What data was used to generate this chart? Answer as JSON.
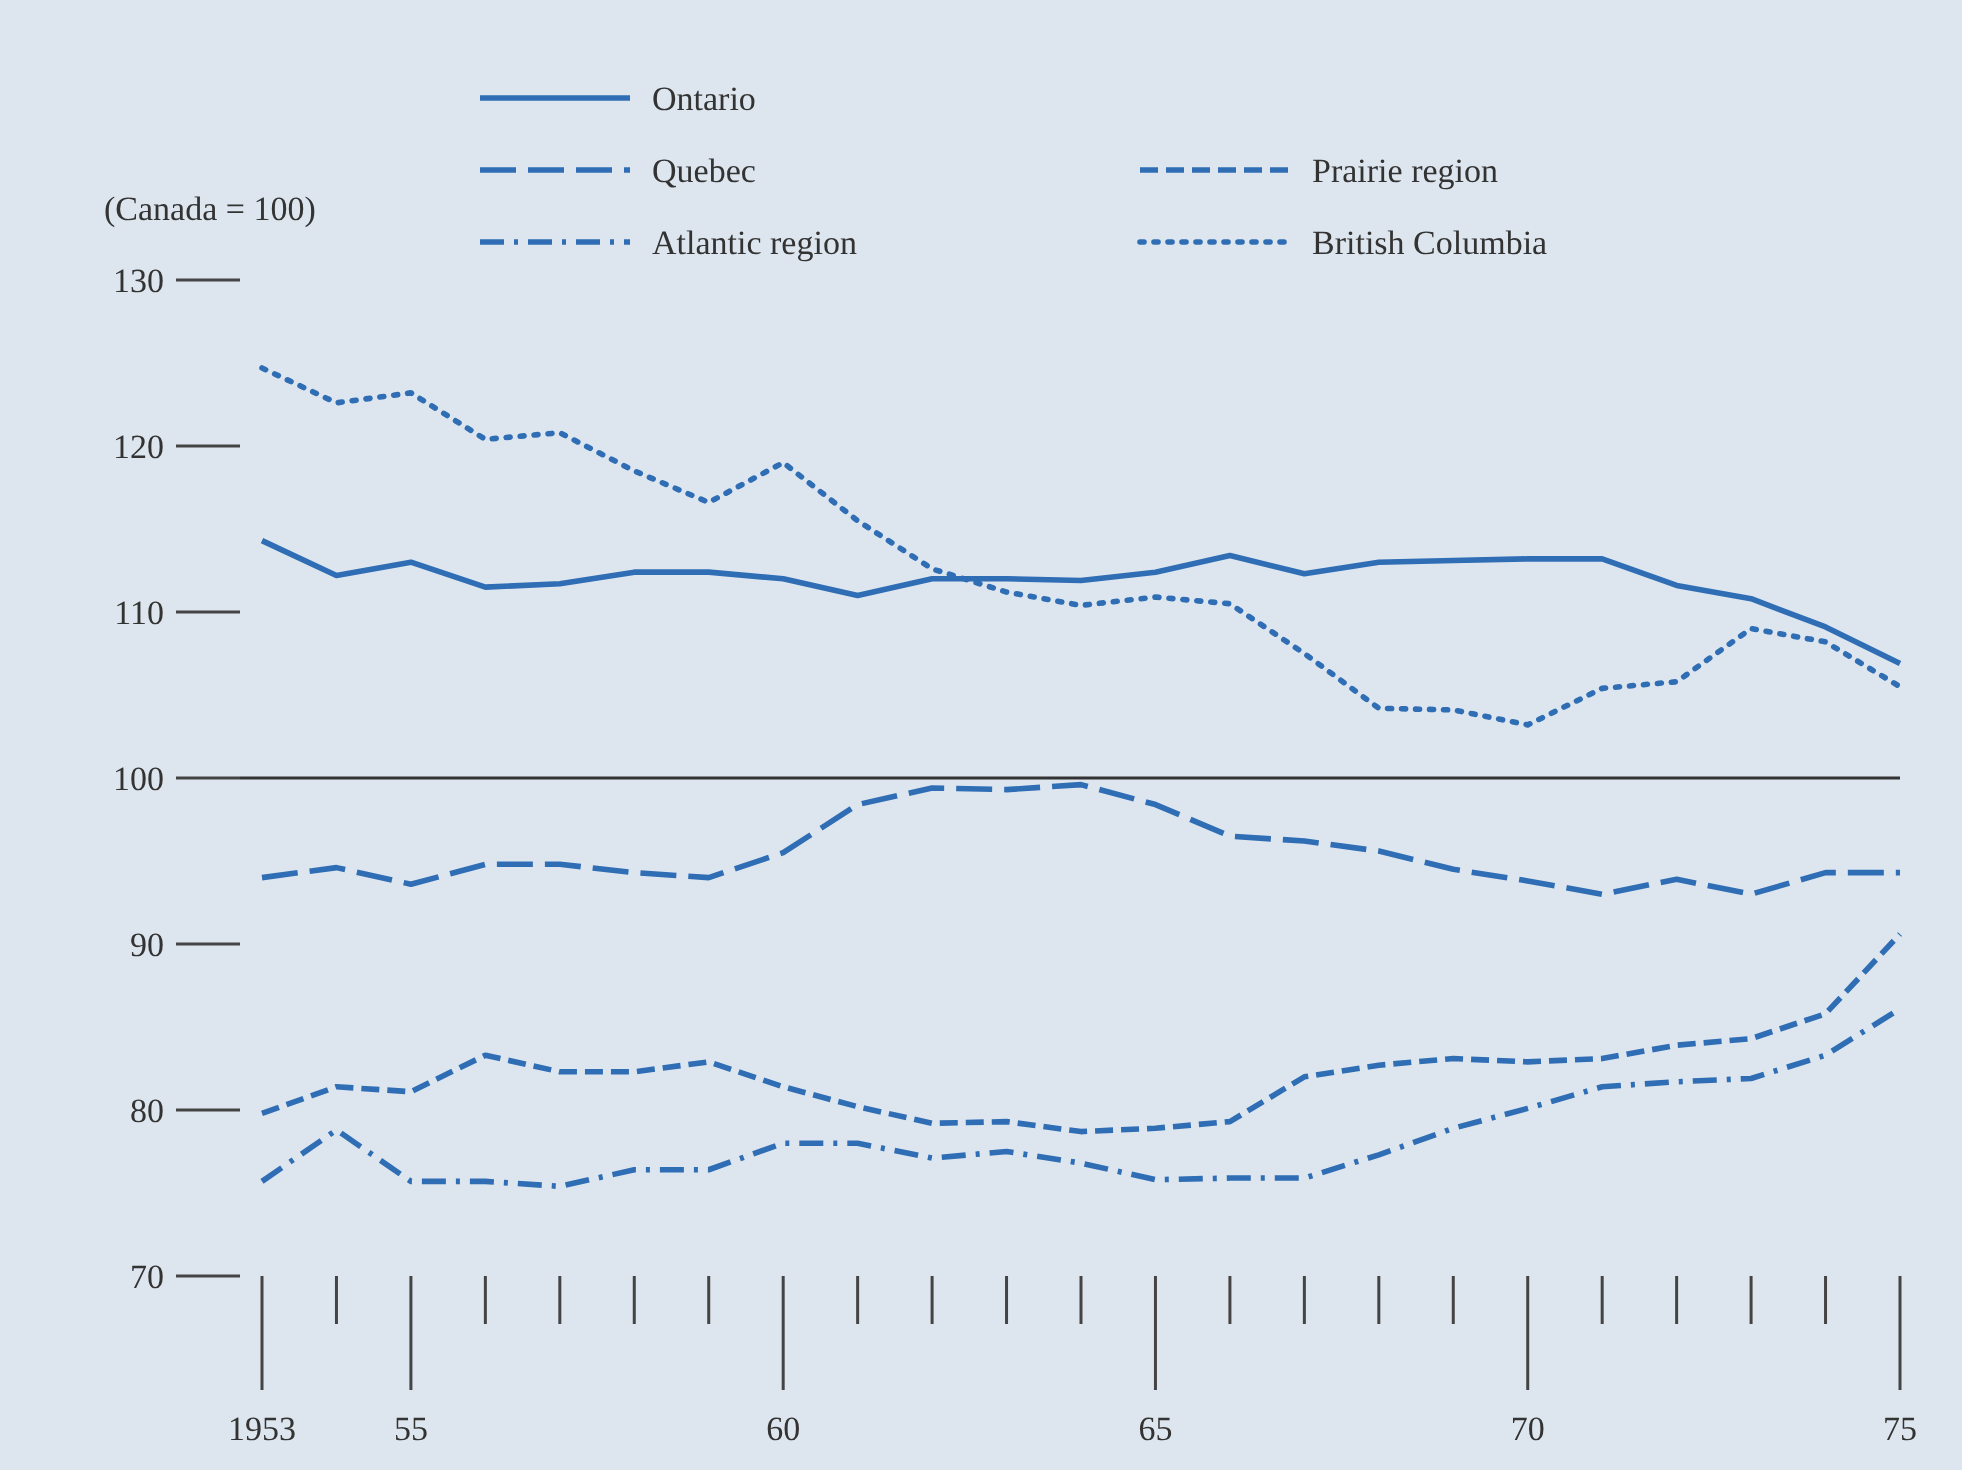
{
  "chart_data": {
    "type": "line",
    "ylabel": "(Canada = 100)",
    "x": [
      1953,
      1954,
      1955,
      1956,
      1957,
      1958,
      1959,
      1960,
      1961,
      1962,
      1963,
      1964,
      1965,
      1966,
      1967,
      1968,
      1969,
      1970,
      1971,
      1972,
      1973,
      1974,
      1975
    ],
    "xlim": [
      1953,
      1975
    ],
    "xticks": [
      {
        "value": 1953,
        "label": "1953"
      },
      {
        "value": 1955,
        "label": "55"
      },
      {
        "value": 1960,
        "label": "60"
      },
      {
        "value": 1965,
        "label": "65"
      },
      {
        "value": 1970,
        "label": "70"
      },
      {
        "value": 1975,
        "label": "75"
      }
    ],
    "ylim": [
      70,
      130
    ],
    "yticks": [
      70,
      80,
      90,
      100,
      110,
      120,
      130
    ],
    "legend": "top",
    "grid": false,
    "ref_lines": [
      {
        "axis": "y",
        "value": 100,
        "color": "#333333",
        "line_style": "solid"
      }
    ],
    "series": [
      {
        "name": "Ontario",
        "color": "#2f6db5",
        "line_style": "solid",
        "values": [
          114.3,
          112.2,
          113,
          111.5,
          111.7,
          112.4,
          112.4,
          112,
          111,
          112,
          112,
          111.9,
          112.4,
          113.4,
          112.3,
          113,
          113.1,
          113.2,
          113.2,
          111.6,
          110.8,
          109.1,
          106.9
        ]
      },
      {
        "name": "Quebec",
        "color": "#2f6db5",
        "line_style": "longdash",
        "values": [
          94,
          94.6,
          93.6,
          94.8,
          94.8,
          94.3,
          94,
          95.5,
          98.4,
          99.4,
          99.3,
          99.6,
          98.4,
          96.5,
          96.2,
          95.6,
          94.5,
          93.8,
          93,
          93.9,
          93,
          94.3,
          94.3
        ]
      },
      {
        "name": "Atlantic region",
        "color": "#2f6db5",
        "line_style": "dashdot",
        "values": [
          75.7,
          78.8,
          75.7,
          75.7,
          75.4,
          76.4,
          76.4,
          78,
          78,
          77.1,
          77.5,
          76.8,
          75.8,
          75.9,
          75.9,
          77.3,
          78.9,
          80.1,
          81.4,
          81.7,
          81.9,
          83.3,
          86.1
        ]
      },
      {
        "name": "Prairie region",
        "color": "#2f6db5",
        "line_style": "dashed",
        "values": [
          79.8,
          81.4,
          81.1,
          83.3,
          82.3,
          82.3,
          82.9,
          81.4,
          80.2,
          79.2,
          79.3,
          78.7,
          78.9,
          79.3,
          82,
          82.7,
          83.1,
          82.9,
          83.1,
          83.9,
          84.3,
          85.8,
          90.6
        ]
      },
      {
        "name": "British Columbia",
        "color": "#2f6db5",
        "line_style": "dotted",
        "values": [
          124.7,
          122.6,
          123.2,
          120.4,
          120.8,
          118.5,
          116.6,
          119,
          115.5,
          112.6,
          111.2,
          110.4,
          110.9,
          110.5,
          107.5,
          104.2,
          104.1,
          103.2,
          105.4,
          105.8,
          109,
          108.2,
          105.5
        ]
      }
    ]
  }
}
